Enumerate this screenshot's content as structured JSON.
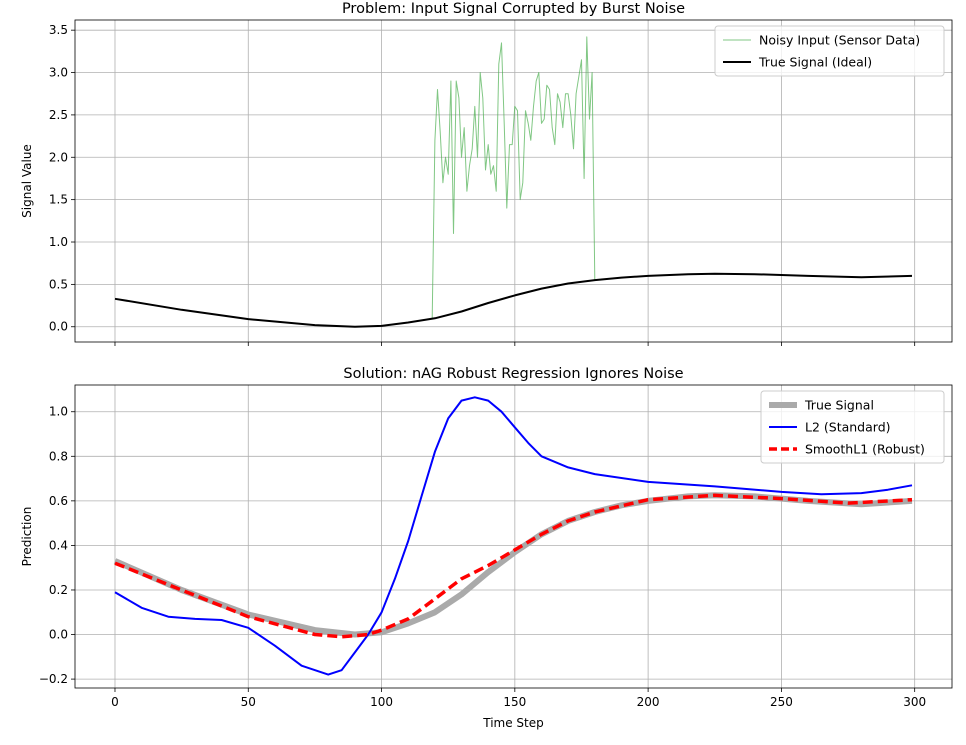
{
  "chart_data": [
    {
      "type": "line",
      "title": "Problem: Input Signal Corrupted by Burst Noise",
      "xlabel": "",
      "ylabel": "Signal Value",
      "xlim": [
        -15,
        314
      ],
      "ylim": [
        -0.18,
        3.62
      ],
      "grid": true,
      "legend": "top-right",
      "xticks": [
        0,
        50,
        100,
        150,
        200,
        250,
        300
      ],
      "show_xtick_labels": false,
      "yticks": [
        0.0,
        0.5,
        1.0,
        1.5,
        2.0,
        2.5,
        3.0,
        3.5
      ],
      "series": [
        {
          "name": "Noisy Input (Sensor Data)",
          "color": "#4caf50",
          "x_start": 119,
          "x_end": 180,
          "values": [
            0.1,
            2.2,
            2.8,
            2.3,
            1.7,
            2.0,
            1.8,
            2.9,
            1.1,
            2.9,
            2.7,
            2.0,
            2.35,
            1.6,
            1.9,
            2.1,
            2.6,
            2.0,
            3.0,
            2.7,
            1.85,
            2.15,
            1.8,
            1.9,
            1.6,
            3.1,
            3.35,
            2.4,
            1.4,
            2.15,
            2.15,
            2.6,
            2.55,
            1.5,
            1.7,
            2.55,
            2.4,
            2.2,
            2.6,
            2.9,
            3.0,
            2.4,
            2.45,
            2.85,
            2.8,
            2.35,
            2.15,
            2.75,
            2.65,
            2.35,
            2.75,
            2.75,
            2.5,
            2.1,
            2.75,
            2.95,
            3.15,
            1.75,
            3.42,
            2.45,
            3.0,
            0.55
          ]
        },
        {
          "name": "True Signal (Ideal)",
          "color": "#000000",
          "x": [
            0,
            25,
            50,
            75,
            90,
            100,
            110,
            120,
            130,
            140,
            150,
            160,
            170,
            180,
            190,
            200,
            215,
            225,
            240,
            260,
            280,
            299
          ],
          "y": [
            0.33,
            0.2,
            0.09,
            0.02,
            0.0,
            0.01,
            0.05,
            0.1,
            0.18,
            0.28,
            0.37,
            0.45,
            0.51,
            0.55,
            0.58,
            0.6,
            0.62,
            0.625,
            0.62,
            0.6,
            0.585,
            0.6
          ]
        }
      ]
    },
    {
      "type": "line",
      "title": "Solution: nAG Robust Regression Ignores Noise",
      "xlabel": "Time Step",
      "ylabel": "Prediction",
      "xlim": [
        -15,
        314
      ],
      "ylim": [
        -0.24,
        1.12
      ],
      "grid": true,
      "legend": "top-right",
      "xticks": [
        0,
        50,
        100,
        150,
        200,
        250,
        300
      ],
      "show_xtick_labels": true,
      "yticks": [
        -0.2,
        0.0,
        0.2,
        0.4,
        0.6,
        0.8,
        1.0
      ],
      "series": [
        {
          "name": "True Signal",
          "color": "#aaaaaa",
          "style": "thick",
          "x": [
            0,
            25,
            50,
            75,
            90,
            100,
            110,
            120,
            130,
            140,
            150,
            160,
            170,
            180,
            190,
            200,
            215,
            225,
            240,
            260,
            280,
            299
          ],
          "y": [
            0.33,
            0.2,
            0.09,
            0.02,
            0.0,
            0.01,
            0.05,
            0.1,
            0.18,
            0.28,
            0.37,
            0.45,
            0.51,
            0.55,
            0.58,
            0.6,
            0.62,
            0.625,
            0.62,
            0.6,
            0.585,
            0.6
          ]
        },
        {
          "name": "L2 (Standard)",
          "color": "#0000ff",
          "style": "solid",
          "x": [
            0,
            10,
            20,
            30,
            40,
            50,
            60,
            70,
            80,
            85,
            90,
            95,
            100,
            105,
            110,
            115,
            120,
            125,
            130,
            135,
            140,
            145,
            150,
            155,
            160,
            170,
            180,
            200,
            225,
            250,
            265,
            280,
            290,
            299
          ],
          "y": [
            0.19,
            0.12,
            0.08,
            0.07,
            0.065,
            0.03,
            -0.05,
            -0.14,
            -0.18,
            -0.16,
            -0.08,
            0.0,
            0.1,
            0.25,
            0.42,
            0.62,
            0.82,
            0.97,
            1.05,
            1.065,
            1.05,
            1.0,
            0.93,
            0.86,
            0.8,
            0.75,
            0.72,
            0.685,
            0.665,
            0.64,
            0.63,
            0.635,
            0.65,
            0.67
          ]
        },
        {
          "name": "SmoothL1 (Robust)",
          "color": "#ff0000",
          "style": "dashed",
          "x": [
            0,
            25,
            50,
            75,
            85,
            95,
            100,
            110,
            120,
            130,
            140,
            150,
            160,
            170,
            180,
            200,
            225,
            250,
            275,
            299
          ],
          "y": [
            0.32,
            0.2,
            0.08,
            0.0,
            -0.01,
            0.0,
            0.02,
            0.07,
            0.16,
            0.25,
            0.31,
            0.38,
            0.45,
            0.51,
            0.55,
            0.605,
            0.625,
            0.61,
            0.59,
            0.605
          ]
        }
      ]
    }
  ]
}
